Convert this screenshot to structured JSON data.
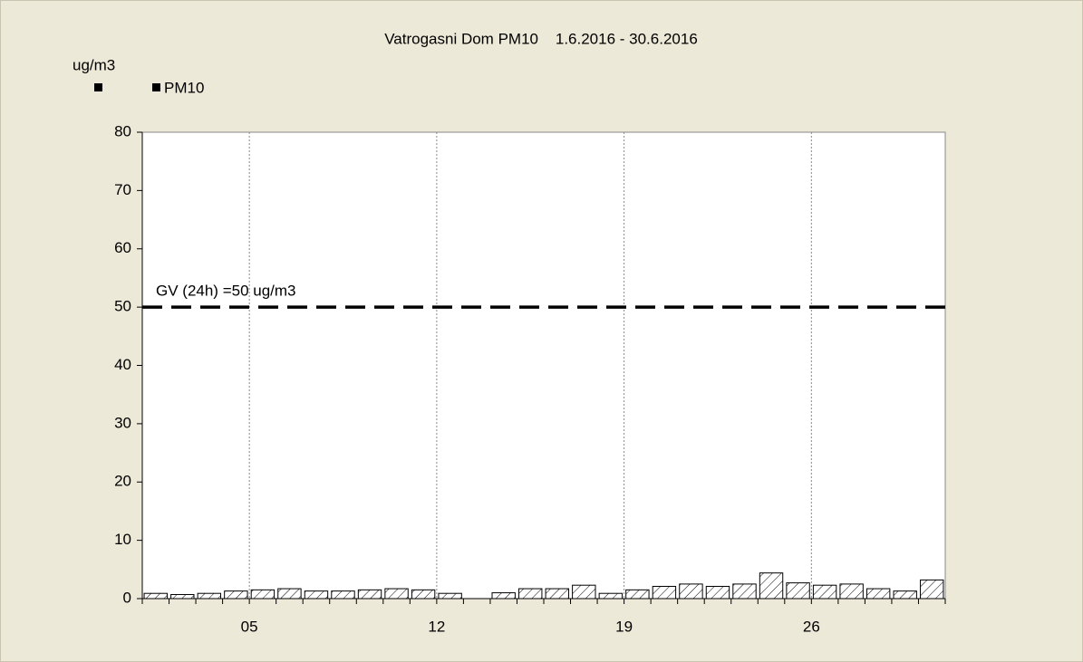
{
  "chart_data": {
    "type": "bar",
    "title": "Vatrogasni Dom PM10    1.6.2016 - 30.6.2016",
    "y_label": "ug/m3",
    "categories": [
      null,
      null,
      null,
      null,
      "05",
      null,
      null,
      null,
      null,
      null,
      null,
      "12",
      null,
      null,
      null,
      null,
      null,
      null,
      "19",
      null,
      null,
      null,
      null,
      null,
      null,
      "26",
      null,
      null,
      null,
      null
    ],
    "series": [
      {
        "name": "PM10",
        "color": "#000000",
        "values": [
          0.9,
          0.7,
          0.9,
          1.3,
          1.5,
          1.7,
          1.3,
          1.3,
          1.5,
          1.7,
          1.5,
          0.9,
          null,
          1.0,
          1.7,
          1.7,
          2.3,
          0.9,
          1.5,
          2.1,
          2.5,
          2.1,
          2.5,
          4.4,
          2.7,
          2.3,
          2.5,
          1.7,
          1.3,
          3.2
        ]
      }
    ],
    "reference_line": {
      "value": 50,
      "label": "GV (24h) =50 ug/m3"
    },
    "ylim": [
      0,
      80
    ],
    "yticks": [
      0,
      10,
      20,
      30,
      40,
      50,
      60,
      70,
      80
    ],
    "grid": true
  }
}
